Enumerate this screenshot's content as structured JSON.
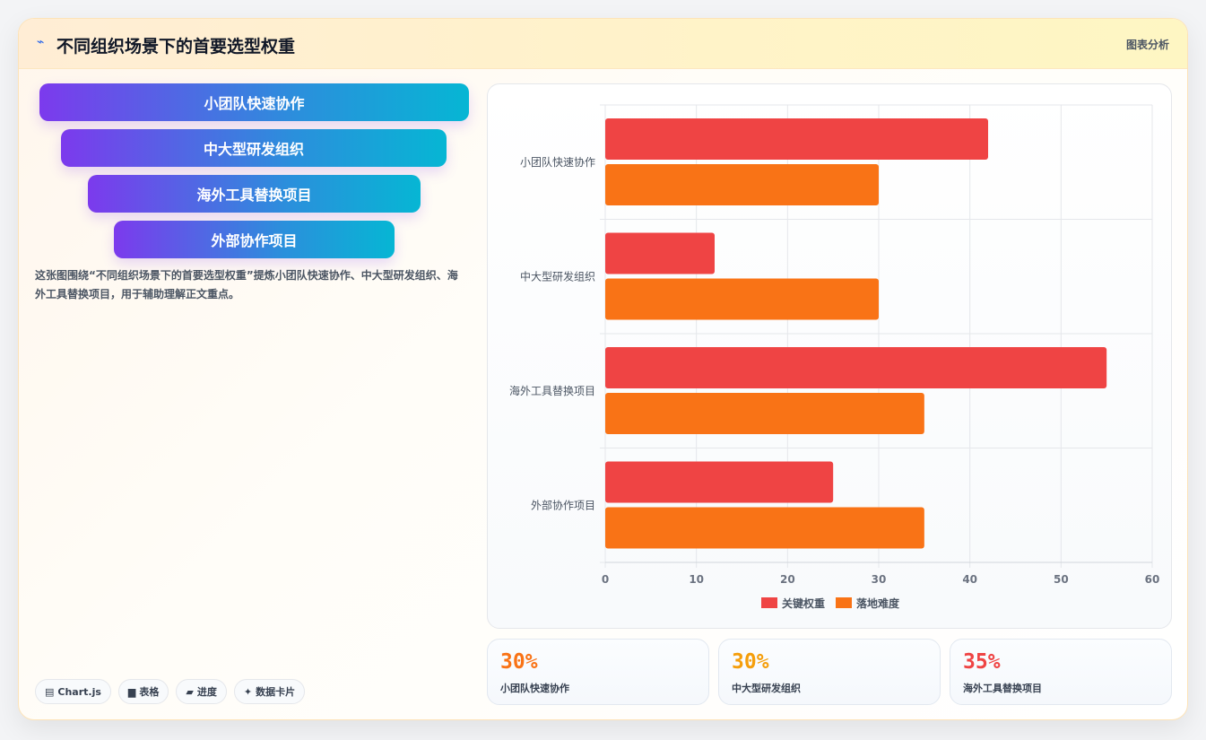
{
  "header": {
    "title": "不同组织场景下的首要选型权重",
    "tag": "图表分析",
    "icon": "wave-icon"
  },
  "funnel": [
    "小团队快速协作",
    "中大型研发组织",
    "海外工具替换项目",
    "外部协作项目"
  ],
  "description": "这张图围绕“不同组织场景下的首要选型权重”提炼小团队快速协作、中大型研发组织、海外工具替换项目，用于辅助理解正文重点。",
  "chips": [
    {
      "icon": "▤",
      "label": "Chart.js"
    },
    {
      "icon": "▆",
      "label": "表格"
    },
    {
      "icon": "▰",
      "label": "进度"
    },
    {
      "icon": "✦",
      "label": "数据卡片"
    }
  ],
  "stats": [
    {
      "value": "30%",
      "label": "小团队快速协作",
      "color": "#f97316"
    },
    {
      "value": "30%",
      "label": "中大型研发组织",
      "color": "#f59e0b"
    },
    {
      "value": "35%",
      "label": "海外工具替换项目",
      "color": "#ef4444"
    }
  ],
  "chart_data": {
    "type": "bar",
    "orientation": "horizontal",
    "categories": [
      "小团队快速协作",
      "中大型研发组织",
      "海外工具替换项目",
      "外部协作项目"
    ],
    "series": [
      {
        "name": "关键权重",
        "values": [
          42,
          12,
          55,
          25
        ],
        "color": "#ef4444"
      },
      {
        "name": "落地难度",
        "values": [
          30,
          30,
          35,
          35
        ],
        "color": "#f97316"
      }
    ],
    "xlim": [
      0,
      60
    ],
    "xticks": [
      0,
      10,
      20,
      30,
      40,
      50,
      60
    ],
    "grid": true,
    "legend": "bottom"
  }
}
